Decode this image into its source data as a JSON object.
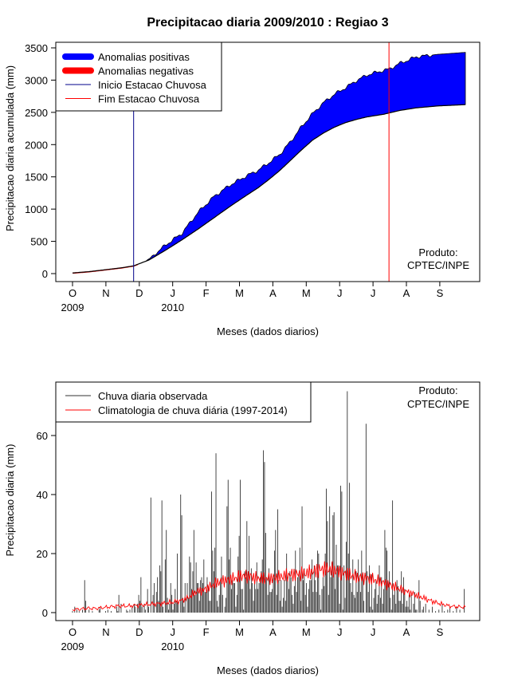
{
  "chart_data": [
    {
      "type": "area",
      "title": "Precipitacao diaria 2009/2010 : Regiao 3",
      "xlabel": "Meses (dados diarios)",
      "ylabel": "Precipitacao diaria acumulada (mm)",
      "ylim": [
        0,
        3500
      ],
      "yticks": [
        "0",
        "500",
        "1000",
        "1500",
        "2000",
        "2500",
        "3000",
        "3500"
      ],
      "months": [
        "O",
        "N",
        "D",
        "J",
        "F",
        "M",
        "A",
        "M",
        "J",
        "J",
        "A",
        "S"
      ],
      "year_labels": [
        {
          "label": "2009",
          "month_index": 0
        },
        {
          "label": "2010",
          "month_index": 3
        }
      ],
      "legend": [
        {
          "label": "Anomalias positivas",
          "color": "#0000ff",
          "style": "thick"
        },
        {
          "label": "Anomalias negativas",
          "color": "#ff0000",
          "style": "thick"
        },
        {
          "label": "Inicio Estacao Chuvosa",
          "color": "#00008b",
          "style": "thin"
        },
        {
          "label": "Fim Estacao Chuvosa",
          "color": "#ff0000",
          "style": "thin"
        }
      ],
      "season_start_day": 56,
      "season_end_day": 290,
      "credit": [
        "Produto:",
        "CPTEC/INPE"
      ],
      "days": [
        0,
        15,
        30,
        45,
        56,
        70,
        85,
        100,
        115,
        130,
        145,
        160,
        170,
        180,
        190,
        200,
        210,
        220,
        230,
        240,
        250,
        260,
        270,
        285,
        290,
        300,
        315,
        335,
        360
      ],
      "observed_cumulative": [
        10,
        25,
        45,
        80,
        110,
        220,
        440,
        620,
        950,
        1200,
        1380,
        1520,
        1600,
        1720,
        1850,
        2050,
        2280,
        2480,
        2650,
        2780,
        2880,
        2990,
        3080,
        3150,
        3170,
        3260,
        3360,
        3400,
        3430
      ],
      "climatology_cumulative": [
        10,
        30,
        60,
        90,
        120,
        210,
        360,
        520,
        690,
        870,
        1050,
        1220,
        1330,
        1460,
        1600,
        1760,
        1920,
        2070,
        2180,
        2270,
        2340,
        2390,
        2430,
        2470,
        2490,
        2530,
        2570,
        2600,
        2620
      ]
    },
    {
      "type": "bar",
      "xlabel": "Meses (dados diarios)",
      "ylabel": "Precipitacao diaria (mm)",
      "ylim": [
        0,
        78
      ],
      "yticks": [
        "0",
        "20",
        "40",
        "60"
      ],
      "months": [
        "O",
        "N",
        "D",
        "J",
        "F",
        "M",
        "A",
        "M",
        "J",
        "J",
        "A",
        "S"
      ],
      "year_labels": [
        {
          "label": "2009",
          "month_index": 0
        },
        {
          "label": "2010",
          "month_index": 3
        }
      ],
      "legend": [
        {
          "label": "Chuva diaria observada",
          "color": "#333333"
        },
        {
          "label": "Climatologia de chuva diária (1997-2014)",
          "color": "#ff0000"
        }
      ],
      "credit": [
        "Produto:",
        "CPTEC/INPE"
      ],
      "daily_observed": [
        0.5,
        0,
        2,
        0,
        1,
        0,
        0.5,
        0,
        0,
        1,
        0,
        11,
        4,
        0,
        0,
        1,
        0,
        0,
        0.5,
        0,
        0,
        0,
        0,
        0,
        1,
        2,
        0,
        0,
        0,
        0,
        0.5,
        0,
        1,
        0,
        0,
        0.5,
        0,
        0,
        0,
        0,
        2,
        0.5,
        6,
        0,
        3,
        0,
        0,
        0,
        0,
        1,
        0.5,
        0,
        1,
        0,
        2,
        0,
        3,
        2,
        0,
        3,
        6,
        4,
        12,
        2,
        0,
        3,
        1,
        0,
        8,
        2,
        0,
        39,
        0,
        6,
        10,
        0,
        7,
        12,
        4,
        16,
        14,
        38,
        2,
        0,
        18,
        28,
        5,
        1,
        3,
        10,
        6,
        1,
        3,
        8,
        4,
        20,
        3,
        0,
        40,
        33,
        5,
        2,
        10,
        0,
        10,
        5,
        19,
        17,
        8,
        14,
        28,
        6,
        17,
        10,
        10,
        4,
        11,
        12,
        10,
        18,
        7,
        7,
        12,
        9,
        4,
        4,
        41,
        21,
        14,
        22,
        54,
        4,
        2,
        6,
        11,
        19,
        6,
        0,
        2,
        5,
        36,
        45,
        18,
        22,
        8,
        11,
        10,
        10,
        2,
        6,
        19,
        26,
        45,
        8,
        8,
        1,
        14,
        12,
        31,
        13,
        26,
        8,
        15,
        10,
        4,
        11,
        8,
        17,
        8,
        10,
        12,
        14,
        18,
        55,
        51,
        27,
        12,
        6,
        15,
        7,
        7,
        8,
        13,
        21,
        28,
        6,
        35,
        11,
        4,
        11,
        2,
        5,
        11,
        4,
        20,
        12,
        8,
        14,
        12,
        6,
        3,
        9,
        21,
        7,
        12,
        13,
        22,
        4,
        36,
        11,
        15,
        6,
        10,
        2,
        8,
        11,
        11,
        18,
        7,
        16,
        11,
        7,
        21,
        20,
        6,
        1,
        8,
        12,
        9,
        20,
        42,
        31,
        6,
        36,
        12,
        17,
        33,
        34,
        8,
        23,
        16,
        16,
        3,
        43,
        41,
        1,
        16,
        5,
        24,
        75,
        20,
        44,
        10,
        7,
        18,
        6,
        5,
        14,
        7,
        18,
        12,
        7,
        21,
        13,
        4,
        0,
        64,
        14,
        7,
        16,
        2,
        13,
        1,
        5,
        8,
        11,
        3,
        6,
        16,
        5,
        12,
        3,
        8,
        28,
        22,
        21,
        10,
        14,
        5,
        1,
        38,
        6,
        8,
        3,
        11,
        9,
        4,
        4,
        14,
        3,
        12,
        8,
        2,
        4,
        2,
        6,
        1,
        6,
        0,
        3,
        7,
        1,
        1,
        0,
        11,
        4,
        0,
        1,
        2,
        0,
        3,
        0,
        0,
        1,
        0,
        0,
        2,
        0,
        0,
        0.5,
        0,
        0,
        1,
        0,
        0,
        3,
        0,
        0.5,
        0,
        0,
        1,
        0,
        2,
        0,
        0,
        0.5,
        0,
        0,
        2,
        0,
        0,
        1,
        0,
        0,
        0,
        8,
        0
      ],
      "climatology_daily": [
        1,
        1.2,
        1.5,
        1.4,
        1.7,
        2,
        2.3,
        2.2,
        2.4,
        2.6,
        2.8,
        3,
        3.2,
        3.5,
        4,
        5,
        7,
        7.6,
        9,
        10.5,
        11,
        11.6,
        12.5,
        12.3,
        11.6,
        11.5,
        11.7,
        12.2,
        12.7,
        13,
        13.2,
        13.7,
        14.5,
        14.8,
        14.3,
        13.5,
        12.8,
        12,
        11.8,
        11.3,
        10.5,
        9.5,
        8.5,
        7.5,
        6.5,
        5.5,
        4.5,
        3.6,
        2.8,
        2.2,
        2,
        1.8
      ]
    }
  ]
}
